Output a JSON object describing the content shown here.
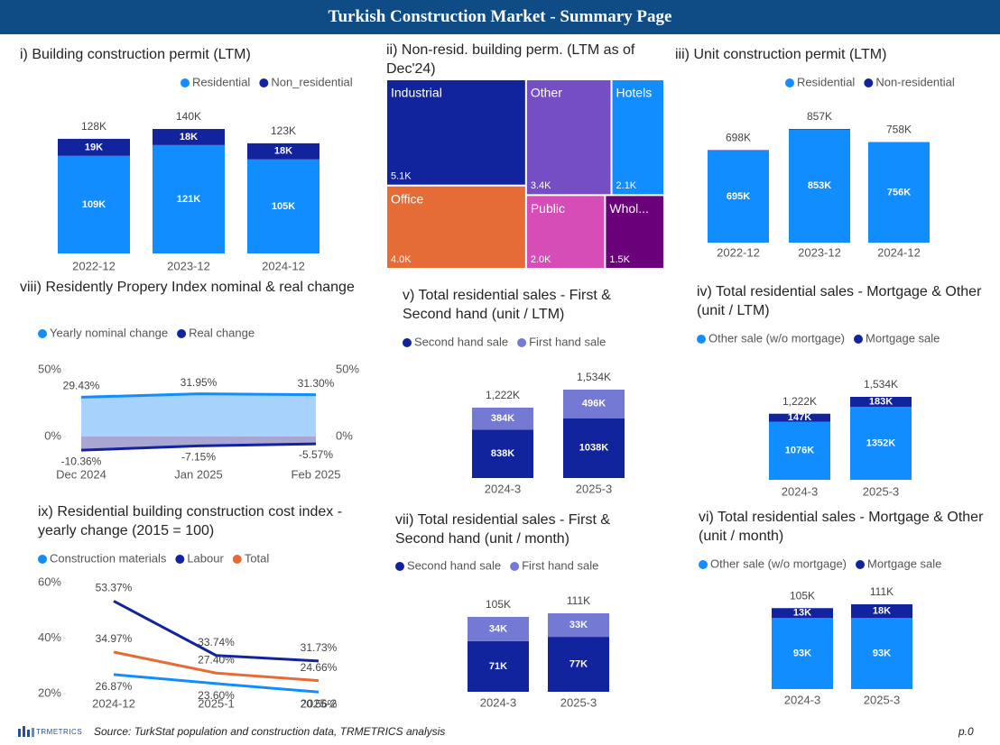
{
  "header": {
    "title": "Turkish Construction Market - Summary Page"
  },
  "chart_data": [
    {
      "type": "bar",
      "title": "i) Building construction permit (LTM)",
      "categories": [
        "2022-12",
        "2023-12",
        "2024-12"
      ],
      "series": [
        {
          "name": "Residential",
          "color": "#118dff",
          "values": [
            109,
            121,
            105
          ],
          "value_labels": [
            "109K",
            "121K",
            "105K"
          ]
        },
        {
          "name": "Non_residential",
          "color": "#12239e",
          "values": [
            19,
            18,
            18
          ],
          "value_labels": [
            "19K",
            "18K",
            "18K"
          ]
        }
      ],
      "total_labels": [
        "128K",
        "140K",
        "123K"
      ]
    },
    {
      "type": "treemap",
      "title": "ii) Non-resid. building perm. (LTM as of Dec'24)",
      "categories": [
        "Industrial",
        "Other",
        "Hotels",
        "Office",
        "Public",
        "Whol..."
      ],
      "values": [
        5.1,
        3.4,
        2.1,
        4,
        2,
        1.5
      ],
      "value_labels": [
        "5.1K",
        "3.4K",
        "2.1K",
        "4.0K",
        "2.0K",
        "1.5K"
      ],
      "colors": [
        "#12239e",
        "#744ec2",
        "#118dff",
        "#e66c37",
        "#d64db7",
        "#6b007b"
      ]
    },
    {
      "type": "bar",
      "title": "iii) Unit construction permit (LTM)",
      "categories": [
        "2022-12",
        "2023-12",
        "2024-12"
      ],
      "series": [
        {
          "name": "Residential",
          "color": "#118dff",
          "values": [
            695,
            853,
            756
          ],
          "value_labels": [
            "695K",
            "853K",
            "756K"
          ]
        },
        {
          "name": "Non-residential",
          "color": "#12239e",
          "values": [
            3,
            4,
            2
          ]
        }
      ],
      "total_labels": [
        "698K",
        "857K",
        "758K"
      ]
    },
    {
      "type": "area",
      "title": "viii) Residently Propery Index nominal & real change",
      "categories": [
        "Dec 2024",
        "Jan 2025",
        "Feb 2025"
      ],
      "series": [
        {
          "name": "Yearly nominal change",
          "color": "#118dff",
          "fill": "#a6d2fb",
          "values": [
            29.43,
            31.95,
            31.3
          ],
          "value_labels": [
            "29.43%",
            "31.95%",
            "31.30%"
          ]
        },
        {
          "name": "Real change",
          "color": "#12239e",
          "fill": "#a9a6d4",
          "values": [
            -10.36,
            -7.15,
            -5.57
          ],
          "value_labels": [
            "-10.36%",
            "-7.15%",
            "-5.57%"
          ]
        }
      ],
      "ylim": [
        -15,
        50
      ],
      "yticks": [
        {
          "value": 0,
          "label": "0%"
        },
        {
          "value": 50,
          "label": "50%"
        }
      ],
      "y2lim": [
        -15,
        50
      ],
      "y2ticks": [
        {
          "value": 0,
          "label": "0%"
        },
        {
          "value": 50,
          "label": "50%"
        }
      ]
    },
    {
      "type": "bar",
      "title": "v) Total residential sales - First & Second hand (unit / LTM)",
      "categories": [
        "2024-3",
        "2025-3"
      ],
      "series": [
        {
          "name": "Second hand sale",
          "color": "#12239e",
          "values": [
            838,
            1038
          ],
          "value_labels": [
            "838K",
            "1038K"
          ]
        },
        {
          "name": "First hand sale",
          "color": "#7479d3",
          "values": [
            384,
            496
          ],
          "value_labels": [
            "384K",
            "496K"
          ]
        }
      ],
      "total_labels": [
        "1,222K",
        "1,534K"
      ]
    },
    {
      "type": "bar",
      "title": "iv) Total residential sales - Mortgage & Other (unit / LTM)",
      "categories": [
        "2024-3",
        "2025-3"
      ],
      "series": [
        {
          "name": "Other sale (w/o mortgage)",
          "color": "#118dff",
          "values": [
            1076,
            1352
          ],
          "value_labels": [
            "1076K",
            "1352K"
          ]
        },
        {
          "name": "Mortgage sale",
          "color": "#12239e",
          "values": [
            147,
            183
          ],
          "value_labels": [
            "147K",
            "183K"
          ]
        }
      ],
      "total_labels": [
        "1,222K",
        "1,534K"
      ]
    },
    {
      "type": "line",
      "title": "ix) Residential building construction cost index - yearly change (2015 = 100)",
      "categories": [
        "2024-12",
        "2025-1",
        "2025-2"
      ],
      "series": [
        {
          "name": "Construction materials",
          "color": "#118dff",
          "values": [
            26.87,
            23.6,
            20.56
          ],
          "value_labels": [
            "26.87%",
            "23.60%",
            "20.56%"
          ]
        },
        {
          "name": "Labour",
          "color": "#12239e",
          "values": [
            53.37,
            33.74,
            31.73
          ],
          "value_labels": [
            "53.37%",
            "33.74%",
            "31.73%"
          ]
        },
        {
          "name": "Total",
          "color": "#e66c37",
          "values": [
            34.97,
            27.4,
            24.66
          ],
          "value_labels": [
            "34.97%",
            "27.40%",
            "24.66%"
          ]
        }
      ],
      "ylim": [
        20,
        60
      ],
      "yticks": [
        {
          "value": 20,
          "label": "20%"
        },
        {
          "value": 40,
          "label": "40%"
        },
        {
          "value": 60,
          "label": "60%"
        }
      ]
    },
    {
      "type": "bar",
      "title": "vii) Total residential sales - First & Second hand (unit / month)",
      "categories": [
        "2024-3",
        "2025-3"
      ],
      "series": [
        {
          "name": "Second hand sale",
          "color": "#12239e",
          "values": [
            71,
            77
          ],
          "value_labels": [
            "71K",
            "77K"
          ]
        },
        {
          "name": "First hand sale",
          "color": "#7479d3",
          "values": [
            34,
            33
          ],
          "value_labels": [
            "34K",
            "33K"
          ]
        }
      ],
      "total_labels": [
        "105K",
        "111K"
      ]
    },
    {
      "type": "bar",
      "title": "vi) Total residential sales - Mortgage & Other (unit / month)",
      "categories": [
        "2024-3",
        "2025-3"
      ],
      "series": [
        {
          "name": "Other sale (w/o mortgage)",
          "color": "#118dff",
          "values": [
            93,
            93
          ],
          "value_labels": [
            "93K",
            "93K"
          ]
        },
        {
          "name": "Mortgage sale",
          "color": "#12239e",
          "values": [
            13,
            18
          ],
          "value_labels": [
            "13K",
            "18K"
          ]
        }
      ],
      "total_labels": [
        "105K",
        "111K"
      ]
    }
  ],
  "footer": {
    "logo": "TRMETRICS",
    "source": "Source: TurkStat population and construction data, TRMETRICS analysis",
    "page": "p.0"
  }
}
